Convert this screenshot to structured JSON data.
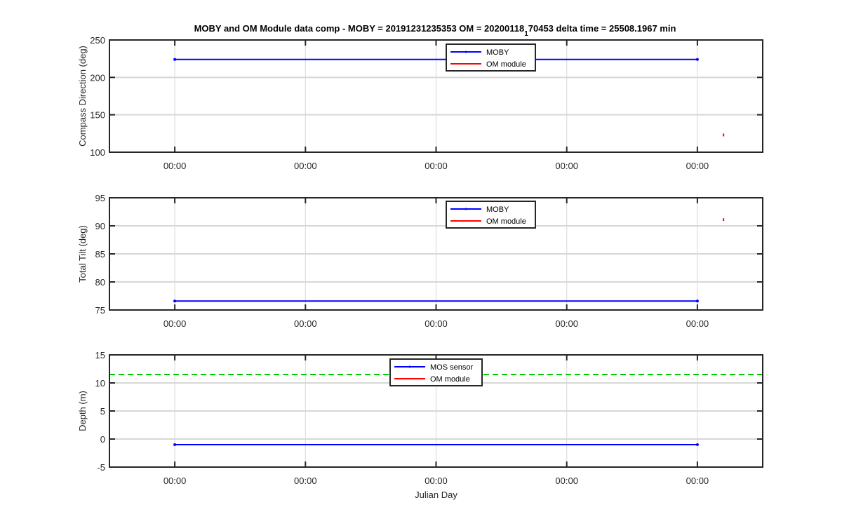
{
  "figure": {
    "title": "MOBY and OM Module data comp - MOBY = 20191231235353 OM = 20200118",
    "title_subscript": "1",
    "title_tail": "70453 delta time = 25508.1967 min"
  },
  "chart_data": [
    {
      "type": "line",
      "id": "compass",
      "xlabel": "",
      "ylabel": "Compass Direction (deg)",
      "xlim": [
        0,
        1
      ],
      "ylim": [
        100,
        250
      ],
      "yticks": [
        100,
        150,
        200,
        250
      ],
      "xticks": [
        0.1,
        0.3,
        0.5,
        0.7,
        0.9
      ],
      "xtick_labels": [
        "00:00",
        "00:00",
        "00:00",
        "00:00",
        "00:00"
      ],
      "grid": true,
      "legend": {
        "location": "top-center",
        "entries": [
          "MOBY",
          "OM module"
        ]
      },
      "series": [
        {
          "name": "MOBY",
          "color": "#0000ff",
          "marker": "dot",
          "x": [
            0.1,
            0.9
          ],
          "y": [
            224,
            224
          ]
        },
        {
          "name": "OM module",
          "color": "#ff0000",
          "marker": "none",
          "x": [
            0.94
          ],
          "y": [
            123
          ]
        }
      ],
      "reference_line": null
    },
    {
      "type": "line",
      "id": "tilt",
      "xlabel": "",
      "ylabel": "Total Tilt (deg)",
      "xlim": [
        0,
        1
      ],
      "ylim": [
        75,
        95
      ],
      "yticks": [
        75,
        80,
        85,
        90,
        95
      ],
      "xticks": [
        0.1,
        0.3,
        0.5,
        0.7,
        0.9
      ],
      "xtick_labels": [
        "00:00",
        "00:00",
        "00:00",
        "00:00",
        "00:00"
      ],
      "grid": true,
      "legend": {
        "location": "top-center",
        "entries": [
          "MOBY",
          "OM module"
        ]
      },
      "series": [
        {
          "name": "MOBY",
          "color": "#0000ff",
          "marker": "dot",
          "x": [
            0.1,
            0.9
          ],
          "y": [
            76.6,
            76.6
          ]
        },
        {
          "name": "OM module",
          "color": "#ff0000",
          "marker": "none",
          "x": [
            0.94
          ],
          "y": [
            91.1
          ]
        }
      ],
      "reference_line": null
    },
    {
      "type": "line",
      "id": "depth",
      "xlabel": "Julian Day",
      "ylabel": "Depth (m)",
      "xlim": [
        0,
        1
      ],
      "ylim": [
        -5,
        15
      ],
      "yticks": [
        -5,
        0,
        5,
        10,
        15
      ],
      "xticks": [
        0.1,
        0.3,
        0.5,
        0.7,
        0.9
      ],
      "xtick_labels": [
        "00:00",
        "00:00",
        "00:00",
        "00:00",
        "00:00"
      ],
      "grid": true,
      "legend": {
        "location": "top-center",
        "entries": [
          "MOS sensor",
          "OM module"
        ]
      },
      "series": [
        {
          "name": "MOS sensor",
          "color": "#0000ff",
          "marker": "dot",
          "x": [
            0.1,
            0.9
          ],
          "y": [
            -1,
            -1
          ]
        },
        {
          "name": "OM module",
          "color": "#ff0000",
          "marker": "none",
          "x": [],
          "y": []
        }
      ],
      "reference_line": {
        "y": 11.5,
        "color": "#00cc00",
        "style": "dashed"
      }
    }
  ]
}
